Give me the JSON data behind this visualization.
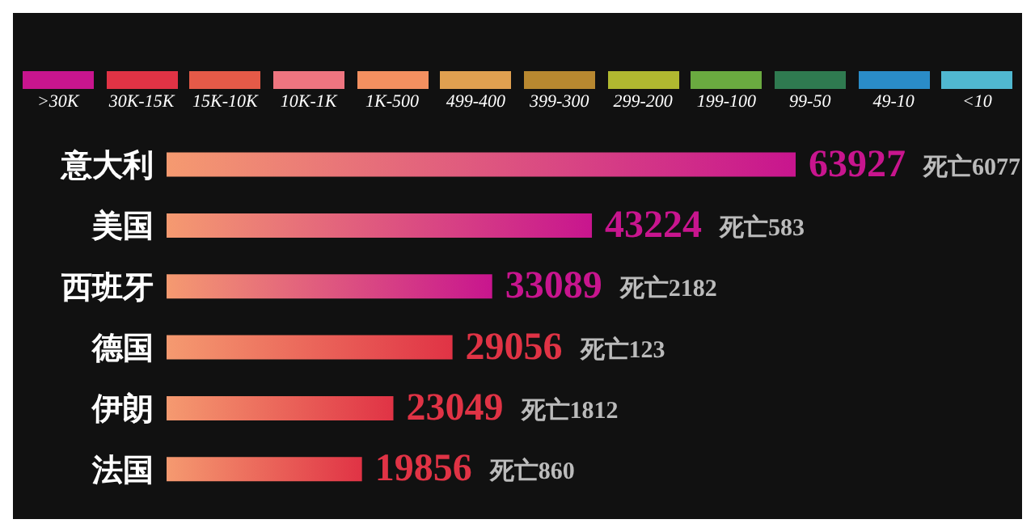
{
  "chart_data": {
    "type": "bar",
    "orientation": "horizontal",
    "stacked": true,
    "legend": "top",
    "data_labels": true,
    "tick_labels": "y",
    "categories": [
      "意大利",
      "美国",
      "西班牙",
      "德国",
      "伊朗",
      "法国"
    ],
    "series": [
      {
        "name": ">30K",
        "color": "#c8158e",
        "values": [
          63927,
          43224,
          33089,
          null,
          null,
          null
        ]
      },
      {
        "name": "30K-15K",
        "color": "#e03345",
        "values": [
          null,
          null,
          null,
          29056,
          23049,
          19856
        ]
      },
      {
        "name": "15K-10K",
        "color": "#e55a48",
        "values": [
          null,
          null,
          null,
          null,
          null,
          null
        ]
      },
      {
        "name": "10K-1K",
        "color": "#ee7580",
        "values": [
          null,
          null,
          null,
          null,
          null,
          null
        ]
      },
      {
        "name": "1K-500",
        "color": "#f39060",
        "values": [
          null,
          null,
          null,
          null,
          null,
          null
        ]
      },
      {
        "name": "499-400",
        "color": "#e0a050",
        "values": [
          null,
          null,
          null,
          null,
          null,
          null
        ]
      },
      {
        "name": "399-300",
        "color": "#b88830",
        "values": [
          null,
          null,
          null,
          null,
          null,
          null
        ]
      },
      {
        "name": "299-200",
        "color": "#b0b830",
        "values": [
          null,
          null,
          null,
          null,
          null,
          null
        ]
      },
      {
        "name": "199-100",
        "color": "#6aaa40",
        "values": [
          null,
          null,
          null,
          null,
          null,
          null
        ]
      },
      {
        "name": "99-50",
        "color": "#2f7a50",
        "values": [
          null,
          null,
          null,
          null,
          null,
          null
        ]
      },
      {
        "name": "49-10",
        "color": "#2a8cc8",
        "values": [
          null,
          null,
          null,
          null,
          null,
          null
        ]
      },
      {
        "name": "<10",
        "color": "#50b8d0",
        "values": [
          null,
          null,
          null,
          null,
          null,
          null
        ]
      }
    ],
    "annotations": [
      "死亡6077",
      "死亡583",
      "死亡2182",
      "死亡123",
      "死亡1812",
      "死亡860"
    ]
  }
}
